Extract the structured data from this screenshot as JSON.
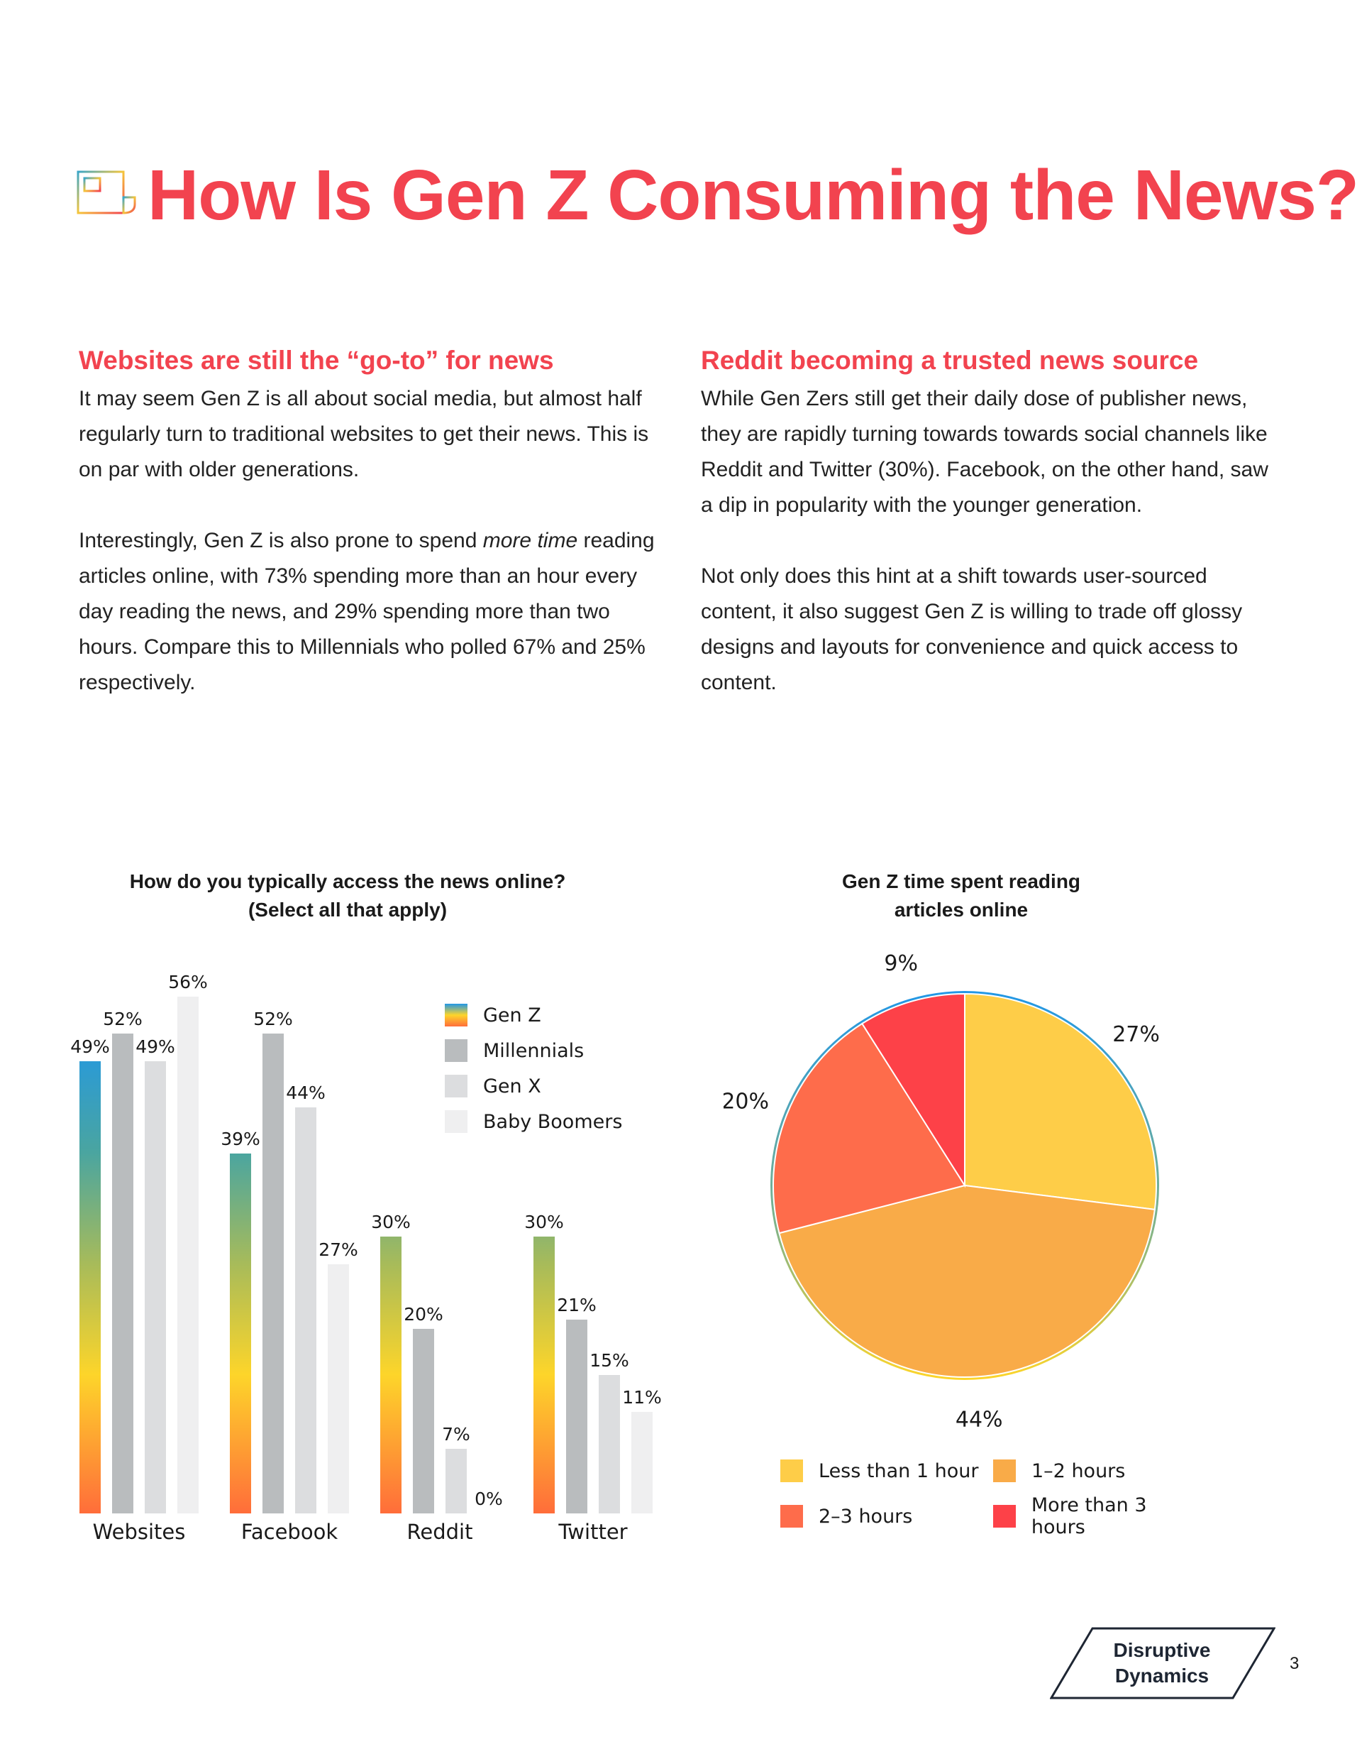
{
  "header": {
    "title": "How Is Gen Z Consuming the News?",
    "icon": "newspaper-icon"
  },
  "left_column": {
    "heading": "Websites are still the “go-to” for news",
    "para1": "It may seem Gen Z is all about social media, but almost half regularly turn to traditional websites to get their news. This is on par with older generations.",
    "para2_before": "Interestingly, Gen Z is also prone to spend ",
    "para2_em": "more time",
    "para2_after": " reading articles online, with 73% spending more than an hour every day reading the news, and 29% spending more than two hours. Compare this to Millennials who polled 67% and 25% respectively."
  },
  "right_column": {
    "heading": "Reddit becoming a trusted news source",
    "para1": "While Gen Zers still get their daily dose of publisher news, they are rapidly turning towards towards social channels like Reddit and Twitter (30%). Facebook, on the other hand, saw a dip in popularity with the younger generation.",
    "para2": "Not only does this hint at a shift towards user-sourced content, it also suggest Gen Z is willing to trade off glossy designs and layouts for convenience and quick access to content."
  },
  "chart_data": [
    {
      "type": "bar",
      "title_line1": "How do you typically access the news online?",
      "title_line2": "(Select all that apply)",
      "categories": [
        "Websites",
        "Facebook",
        "Reddit",
        "Twitter"
      ],
      "series": [
        {
          "name": "Gen Z",
          "values": [
            49,
            39,
            30,
            30
          ],
          "color": "gradient"
        },
        {
          "name": "Millennials",
          "values": [
            52,
            52,
            20,
            21
          ],
          "color": "#b9bcbe"
        },
        {
          "name": "Gen X",
          "values": [
            49,
            44,
            7,
            15
          ],
          "color": "#dcdddf"
        },
        {
          "name": "Baby Boomers",
          "values": [
            56,
            27,
            0,
            11
          ],
          "color": "#efeff0"
        }
      ],
      "value_suffix": "%",
      "ylim": [
        0,
        60
      ],
      "legend_position": "top-right"
    },
    {
      "type": "pie",
      "title_line1": "Gen Z time spent reading",
      "title_line2": "articles online",
      "slices": [
        {
          "label": "Less than 1 hour",
          "value": 27,
          "color": "#fecd48"
        },
        {
          "label": "1–2 hours",
          "value": 44,
          "color": "#f9ab48"
        },
        {
          "label": "2–3 hours",
          "value": 20,
          "color": "#fe6c4b"
        },
        {
          "label": "More than 3 hours",
          "value": 9,
          "color": "#fd4148"
        }
      ],
      "value_suffix": "%",
      "legend_position": "bottom"
    }
  ],
  "footer": {
    "logo_line1": "Disruptive",
    "logo_line2": "Dynamics",
    "page_number": "3"
  }
}
